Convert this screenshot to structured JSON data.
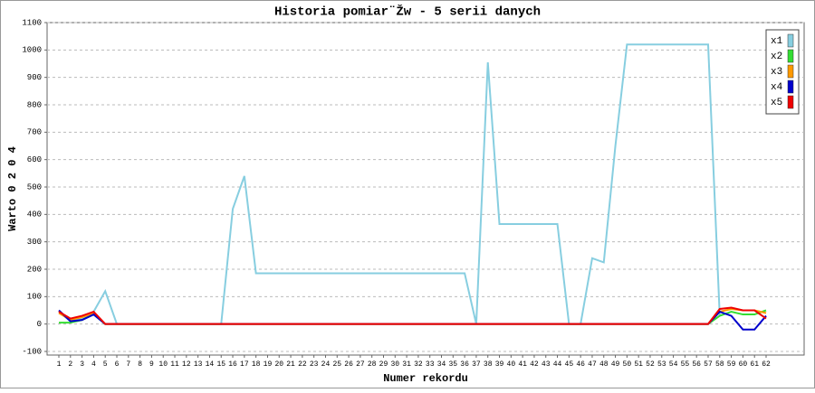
{
  "chart_data": {
    "type": "line",
    "title": "Historia pomiar¨Žw - 5 serii danych",
    "x_label": "Numer rekordu",
    "y_label": "Warto 0 2 0 4",
    "categories": [
      1,
      2,
      3,
      4,
      5,
      6,
      7,
      8,
      9,
      10,
      11,
      12,
      13,
      14,
      15,
      16,
      17,
      18,
      19,
      20,
      21,
      22,
      23,
      24,
      25,
      26,
      27,
      28,
      29,
      30,
      31,
      32,
      33,
      34,
      35,
      36,
      37,
      38,
      39,
      40,
      41,
      42,
      43,
      44,
      45,
      46,
      47,
      48,
      49,
      50,
      51,
      52,
      53,
      54,
      55,
      56,
      57,
      58,
      59,
      60,
      61,
      62
    ],
    "ylim": [
      -100,
      1100
    ],
    "yticks": [
      -100,
      0,
      100,
      200,
      300,
      400,
      500,
      600,
      700,
      800,
      900,
      1000,
      1100
    ],
    "grid": true,
    "legend": "upper right",
    "series": [
      {
        "name": "x1",
        "color": "#87cee0",
        "values": [
          45,
          10,
          20,
          45,
          120,
          0,
          0,
          0,
          0,
          0,
          0,
          0,
          0,
          0,
          0,
          420,
          540,
          185,
          185,
          185,
          185,
          185,
          185,
          185,
          185,
          185,
          185,
          185,
          185,
          185,
          185,
          185,
          185,
          185,
          185,
          185,
          0,
          955,
          365,
          365,
          365,
          365,
          365,
          365,
          0,
          0,
          240,
          225,
          650,
          1020,
          1020,
          1020,
          1020,
          1020,
          1020,
          1020,
          1020,
          30,
          null,
          null,
          null,
          null
        ]
      },
      {
        "name": "x2",
        "color": "#33dd33",
        "values": [
          5,
          5,
          15,
          35,
          0,
          0,
          0,
          0,
          0,
          0,
          0,
          0,
          0,
          0,
          0,
          0,
          0,
          0,
          0,
          0,
          0,
          0,
          0,
          0,
          0,
          0,
          0,
          0,
          0,
          0,
          0,
          0,
          0,
          0,
          0,
          0,
          0,
          0,
          0,
          0,
          0,
          0,
          0,
          0,
          0,
          0,
          0,
          0,
          0,
          0,
          0,
          0,
          0,
          0,
          0,
          0,
          0,
          30,
          45,
          35,
          35,
          50
        ]
      },
      {
        "name": "x3",
        "color": "#ff9900",
        "values": [
          40,
          15,
          25,
          40,
          0,
          0,
          0,
          0,
          0,
          0,
          0,
          0,
          0,
          0,
          0,
          0,
          0,
          0,
          0,
          0,
          0,
          0,
          0,
          0,
          0,
          0,
          0,
          0,
          0,
          0,
          0,
          0,
          0,
          0,
          0,
          0,
          0,
          0,
          0,
          0,
          0,
          0,
          0,
          0,
          0,
          0,
          0,
          0,
          0,
          0,
          0,
          0,
          0,
          0,
          0,
          0,
          0,
          45,
          55,
          50,
          50,
          40
        ]
      },
      {
        "name": "x4",
        "color": "#0000cc",
        "values": [
          50,
          10,
          15,
          35,
          0,
          0,
          0,
          0,
          0,
          0,
          0,
          0,
          0,
          0,
          0,
          0,
          0,
          0,
          0,
          0,
          0,
          0,
          0,
          0,
          0,
          0,
          0,
          0,
          0,
          0,
          0,
          0,
          0,
          0,
          0,
          0,
          0,
          0,
          0,
          0,
          0,
          0,
          0,
          0,
          0,
          0,
          0,
          0,
          0,
          0,
          0,
          0,
          0,
          0,
          0,
          0,
          0,
          45,
          30,
          -20,
          -20,
          30
        ]
      },
      {
        "name": "x5",
        "color": "#ee0000",
        "values": [
          45,
          20,
          30,
          45,
          0,
          0,
          0,
          0,
          0,
          0,
          0,
          0,
          0,
          0,
          0,
          0,
          0,
          0,
          0,
          0,
          0,
          0,
          0,
          0,
          0,
          0,
          0,
          0,
          0,
          0,
          0,
          0,
          0,
          0,
          0,
          0,
          0,
          0,
          0,
          0,
          0,
          0,
          0,
          0,
          0,
          0,
          0,
          0,
          0,
          0,
          0,
          0,
          0,
          0,
          0,
          0,
          0,
          55,
          60,
          50,
          50,
          20
        ]
      }
    ]
  }
}
